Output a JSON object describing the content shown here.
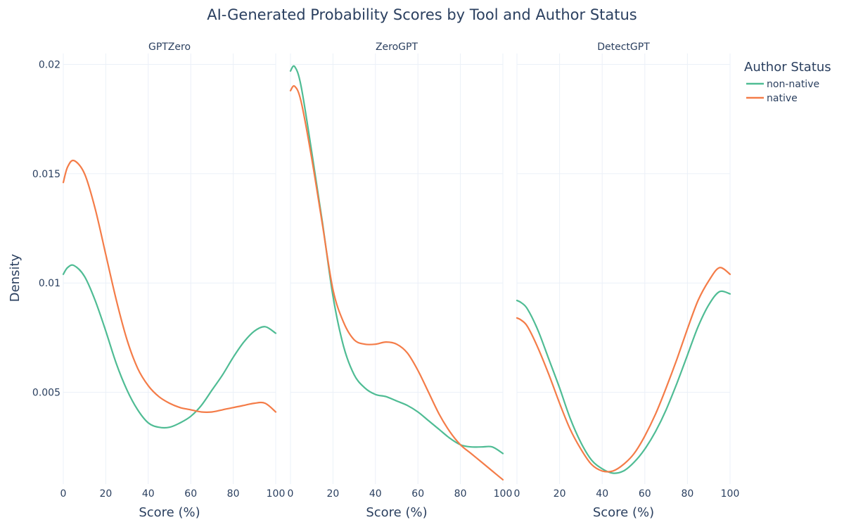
{
  "chart_data": {
    "type": "line",
    "title": "AI-Generated Probability Scores by Tool and Author Status",
    "xlabel": "Score (%)",
    "ylabel": "Density",
    "xlim": [
      0,
      100
    ],
    "ylim": [
      0.0008,
      0.0205
    ],
    "x_ticks": [
      0,
      20,
      40,
      60,
      80,
      100
    ],
    "y_ticks": [
      0.005,
      0.01,
      0.015,
      0.02
    ],
    "y_tick_labels": [
      "0.005",
      "0.01",
      "0.015",
      "0.02"
    ],
    "grid": true,
    "legend": {
      "title": "Author Status",
      "placement": "top-right",
      "entries": [
        {
          "name": "non-native",
          "color": "#4fbc94"
        },
        {
          "name": "native",
          "color": "#f47c48"
        }
      ]
    },
    "x": [
      0,
      2,
      5,
      10,
      15,
      20,
      25,
      30,
      35,
      40,
      45,
      50,
      55,
      60,
      65,
      70,
      75,
      80,
      85,
      90,
      95,
      100
    ],
    "panels": [
      {
        "name": "GPTZero",
        "series": [
          {
            "name": "non-native",
            "color": "#4fbc94",
            "values": [
              0.0104,
              0.0107,
              0.0108,
              0.0103,
              0.0092,
              0.0078,
              0.0063,
              0.0051,
              0.0042,
              0.0036,
              0.0034,
              0.0034,
              0.0036,
              0.0039,
              0.0044,
              0.0051,
              0.0058,
              0.0066,
              0.0073,
              0.0078,
              0.008,
              0.0077
            ]
          },
          {
            "name": "native",
            "color": "#f47c48",
            "values": [
              0.0146,
              0.0153,
              0.0156,
              0.015,
              0.0134,
              0.0113,
              0.0092,
              0.0074,
              0.0061,
              0.0053,
              0.0048,
              0.0045,
              0.0043,
              0.0042,
              0.0041,
              0.0041,
              0.0042,
              0.0043,
              0.0044,
              0.0045,
              0.0045,
              0.0041
            ]
          }
        ]
      },
      {
        "name": "ZeroGPT",
        "series": [
          {
            "name": "non-native",
            "color": "#4fbc94",
            "values": [
              0.0197,
              0.0199,
              0.019,
              0.016,
              0.0128,
              0.0094,
              0.0071,
              0.0058,
              0.0052,
              0.0049,
              0.0048,
              0.0046,
              0.0044,
              0.0041,
              0.0037,
              0.0033,
              0.0029,
              0.0026,
              0.0025,
              0.0025,
              0.0025,
              0.0022
            ]
          },
          {
            "name": "native",
            "color": "#f47c48",
            "values": [
              0.0188,
              0.019,
              0.0183,
              0.0157,
              0.0127,
              0.0097,
              0.0082,
              0.0074,
              0.0072,
              0.0072,
              0.0073,
              0.0072,
              0.0068,
              0.006,
              0.005,
              0.004,
              0.0032,
              0.0026,
              0.0022,
              0.0018,
              0.0014,
              0.001
            ]
          }
        ]
      },
      {
        "name": "DetectGPT",
        "series": [
          {
            "name": "non-native",
            "color": "#4fbc94",
            "values": [
              0.0092,
              0.0091,
              0.0088,
              0.0078,
              0.0065,
              0.0052,
              0.0038,
              0.0027,
              0.0019,
              0.0015,
              0.0013,
              0.0014,
              0.0018,
              0.0024,
              0.0032,
              0.0042,
              0.0054,
              0.0067,
              0.008,
              0.009,
              0.0096,
              0.0095
            ]
          },
          {
            "name": "native",
            "color": "#f47c48",
            "values": [
              0.0084,
              0.0083,
              0.008,
              0.007,
              0.0058,
              0.0045,
              0.0033,
              0.0024,
              0.0017,
              0.0014,
              0.0014,
              0.0017,
              0.0022,
              0.003,
              0.004,
              0.0052,
              0.0065,
              0.0079,
              0.0092,
              0.0101,
              0.0107,
              0.0104
            ]
          }
        ]
      }
    ]
  }
}
